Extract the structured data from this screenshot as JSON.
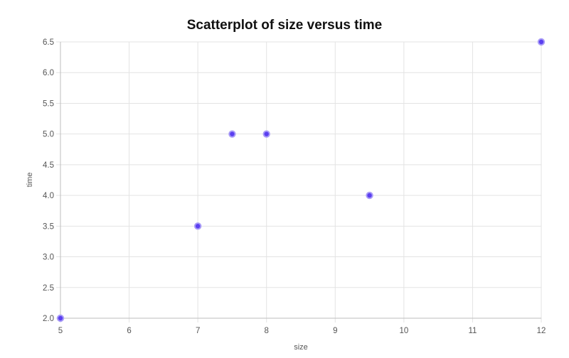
{
  "chart_data": {
    "type": "scatter",
    "title": "Scatterplot of size versus time",
    "xlabel": "size",
    "ylabel": "time",
    "xlim": [
      5,
      12
    ],
    "ylim": [
      2.0,
      6.5
    ],
    "x_ticks": [
      "5",
      "6",
      "7",
      "8",
      "9",
      "10",
      "11",
      "12"
    ],
    "y_ticks": [
      "2.0",
      "2.5",
      "3.0",
      "3.5",
      "4.0",
      "4.5",
      "5.0",
      "5.5",
      "6.0",
      "6.5"
    ],
    "grid": true,
    "legend": "none",
    "colors": {
      "point_fill": "#5b3ff0",
      "point_stroke": "#a99cf7"
    },
    "points": [
      {
        "x": 5,
        "y": 2.0
      },
      {
        "x": 7,
        "y": 3.5
      },
      {
        "x": 7.5,
        "y": 5.0
      },
      {
        "x": 8,
        "y": 5.0
      },
      {
        "x": 9.5,
        "y": 4.0
      },
      {
        "x": 12,
        "y": 6.5
      }
    ]
  }
}
